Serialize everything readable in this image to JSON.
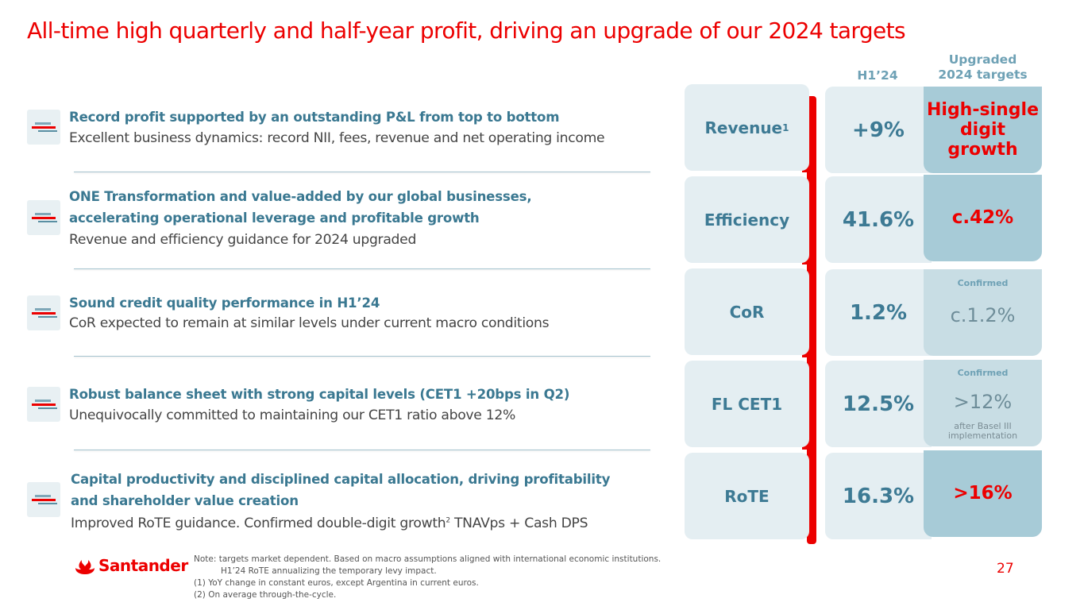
{
  "title": "All-time high quarterly and half-year profit, driving an upgrade of our 2024 targets",
  "items": [
    {
      "head": "Record profit supported by an outstanding P&L from top to bottom",
      "sub": "Excellent business dynamics: record NII, fees, revenue and net operating income"
    },
    {
      "head_line1": "ONE Transformation and value-added by our global businesses,",
      "head_line2": "accelerating operational leverage and profitable growth",
      "sub": "Revenue and efficiency guidance for 2024 upgraded"
    },
    {
      "head": "Sound credit quality performance in H1’24",
      "sub": "CoR expected to remain at similar levels under current macro conditions"
    },
    {
      "head": "Robust balance sheet with strong capital levels (CET1 +20bps in Q2)",
      "sub": "Unequivocally committed to maintaining our CET1 ratio above 12%"
    },
    {
      "head_line1": "Capital productivity and disciplined capital allocation, driving profitability",
      "head_line2": "and shareholder value creation",
      "sub_pre": "Improved RoTE guidance. Confirmed double-digit growth",
      "sub_sup": "2",
      "sub_post": " TNAVps + Cash DPS"
    }
  ],
  "table": {
    "col_h1": "H1’24",
    "col_target_line1": "Upgraded",
    "col_target_line2": "2024 targets",
    "rows": [
      {
        "label": "Revenue",
        "label_sup": "1",
        "h1": "+9%",
        "target_line1": "High-single",
        "target_line2": "digit growth"
      },
      {
        "label": "Efficiency",
        "h1": "41.6%",
        "target": "c.42%"
      },
      {
        "label": "CoR",
        "h1": "1.2%",
        "confirmed": "Confirmed",
        "target": "c.1.2%"
      },
      {
        "label": "FL CET1",
        "h1": "12.5%",
        "confirmed": "Confirmed",
        "target": ">12%",
        "target_note_line1": "after Basel III",
        "target_note_line2": "implementation"
      },
      {
        "label": "RoTE",
        "h1": "16.3%",
        "target": ">16%"
      }
    ]
  },
  "brand": {
    "name": "Santander",
    "color": "#ec0000",
    "accent": "#3a7891"
  },
  "notes": {
    "line1": "Note:  targets market dependent. Based on macro assumptions aligned with international economic institutions.",
    "line2": "H1’24 RoTE annualizing the temporary levy impact.",
    "line3": "(1)  YoY change in constant euros, except Argentina in current euros.",
    "line4": "(2)  On average through-the-cycle."
  },
  "page_number": "27"
}
